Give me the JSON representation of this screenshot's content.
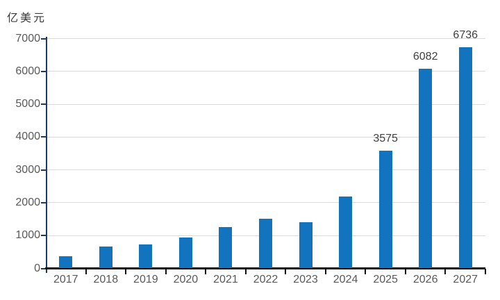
{
  "unit_label": "亿美元",
  "chart_data": {
    "type": "bar",
    "title": "",
    "xlabel": "",
    "ylabel": "亿美元",
    "categories": [
      "2017",
      "2018",
      "2019",
      "2020",
      "2021",
      "2022",
      "2023",
      "2024",
      "2025",
      "2026",
      "2027"
    ],
    "values": [
      370,
      660,
      730,
      940,
      1260,
      1510,
      1400,
      2180,
      3575,
      6082,
      6736
    ],
    "data_labels": [
      null,
      null,
      null,
      null,
      null,
      null,
      null,
      null,
      "3575",
      "6082",
      "6736"
    ],
    "yticks": [
      0,
      1000,
      2000,
      3000,
      4000,
      5000,
      6000,
      7000
    ],
    "ylim": [
      0,
      7000
    ],
    "ytick_step": 1000,
    "grid": "horizontal-only",
    "legend": "none",
    "colors": {
      "bar": "#1274be",
      "gridline": "#d9d9d9",
      "y_axis": "#1e3a5f",
      "x_axis": "#111111",
      "tick_label": "#595959",
      "data_label": "#3f3f3f",
      "unit_label": "#3a3a3a",
      "background": "#ffffff"
    }
  }
}
